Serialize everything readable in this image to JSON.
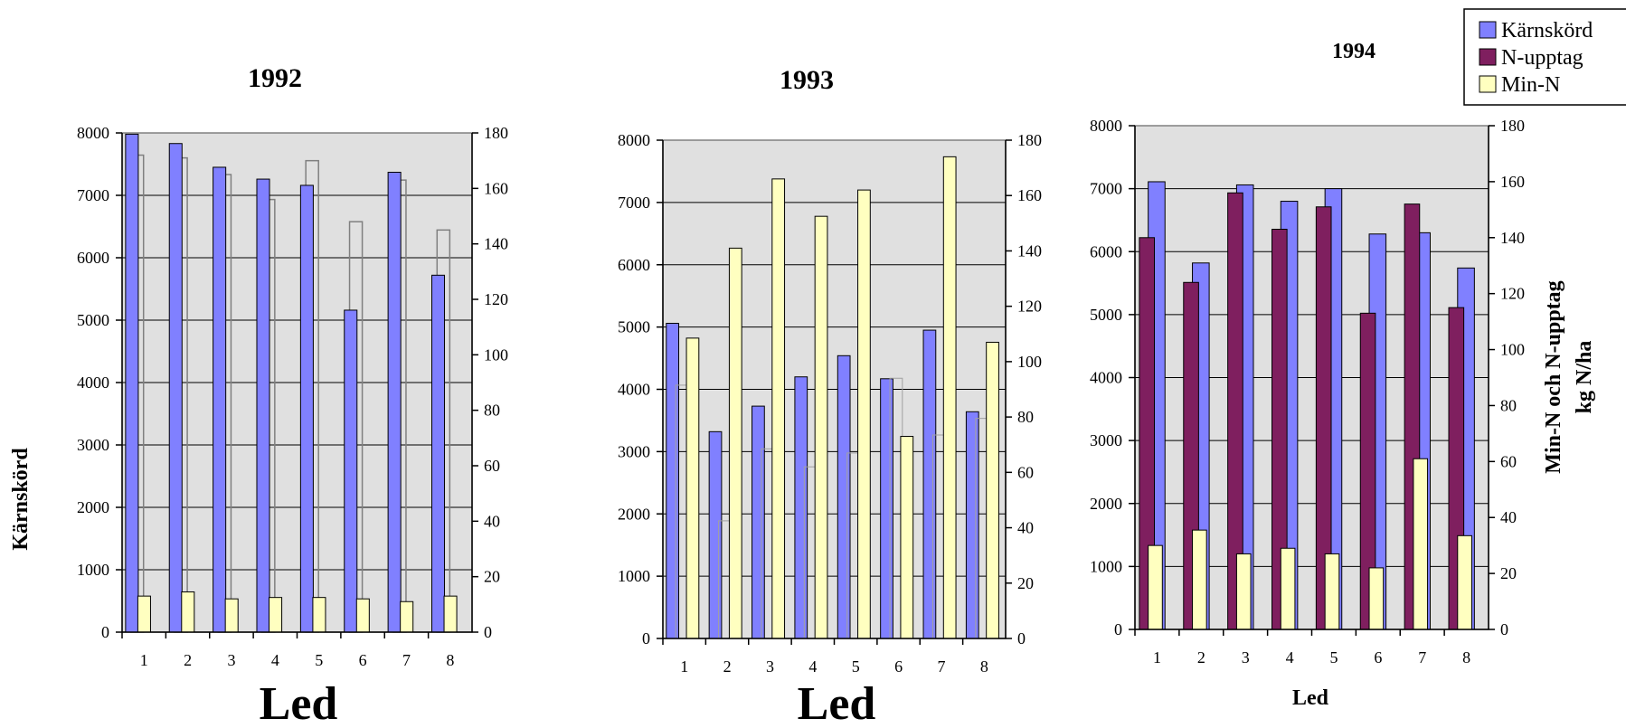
{
  "chart_data": [
    {
      "type": "bar",
      "title": "1992",
      "xlabel": "Led",
      "ylabel": "Kärnskörd",
      "ylabel_right": "",
      "categories": [
        "1",
        "2",
        "3",
        "4",
        "5",
        "6",
        "7",
        "8"
      ],
      "ylim": [
        0,
        8000
      ],
      "ylim_right": [
        0,
        180
      ],
      "yticks": [
        "0",
        "1000",
        "2000",
        "3000",
        "4000",
        "5000",
        "6000",
        "7000",
        "8000"
      ],
      "yticks_right": [
        "0",
        "20",
        "40",
        "60",
        "80",
        "100",
        "120",
        "140",
        "160",
        "180"
      ],
      "grid": true,
      "series": [
        {
          "name": "Kärnskörd",
          "axis": "left",
          "values": [
            7980,
            7830,
            7450,
            7260,
            7160,
            5160,
            7370,
            5720
          ]
        },
        {
          "name": "N-upptag",
          "axis": "right",
          "values": [
            172,
            171,
            165,
            156,
            170,
            148,
            163,
            145
          ]
        },
        {
          "name": "Min-N",
          "axis": "right",
          "values": [
            13,
            14.5,
            12,
            12.5,
            12.5,
            12,
            11,
            13
          ]
        }
      ]
    },
    {
      "type": "bar",
      "title": "1993",
      "xlabel": "Led",
      "ylabel": "",
      "ylabel_right": "",
      "categories": [
        "1",
        "2",
        "3",
        "4",
        "5",
        "6",
        "7",
        "8"
      ],
      "ylim": [
        0,
        8000
      ],
      "ylim_right": [
        0,
        180
      ],
      "yticks": [
        "0",
        "1000",
        "2000",
        "3000",
        "4000",
        "5000",
        "6000",
        "7000",
        "8000"
      ],
      "yticks_right": [
        "0",
        "20",
        "40",
        "60",
        "80",
        "100",
        "120",
        "140",
        "160",
        "180"
      ],
      "grid": true,
      "series": [
        {
          "name": "Kärnskörd",
          "axis": "left",
          "values": [
            5060,
            3320,
            3730,
            4200,
            4540,
            4170,
            4950,
            3640
          ]
        },
        {
          "name": "N-upptag",
          "axis": "right",
          "values": [
            91.5,
            42.5,
            68.5,
            62,
            67,
            94,
            73.5,
            79.5
          ]
        },
        {
          "name": "Min-N",
          "axis": "right",
          "values": [
            108.5,
            141,
            166,
            152.5,
            162,
            73,
            174,
            107
          ]
        }
      ]
    },
    {
      "type": "bar",
      "title": "1994",
      "xlabel": "Led",
      "ylabel": "",
      "ylabel_right": "Min-N och N-upptag kg N/ha",
      "ylabel_right_lines": [
        "Min-N och N-upptag",
        "kg N/ha"
      ],
      "categories": [
        "1",
        "2",
        "3",
        "4",
        "5",
        "6",
        "7",
        "8"
      ],
      "ylim": [
        0,
        8000
      ],
      "ylim_right": [
        0,
        180
      ],
      "yticks": [
        "0",
        "1000",
        "2000",
        "3000",
        "4000",
        "5000",
        "6000",
        "7000",
        "8000"
      ],
      "yticks_right": [
        "0",
        "20",
        "40",
        "60",
        "80",
        "100",
        "120",
        "140",
        "160",
        "180"
      ],
      "grid": true,
      "series": [
        {
          "name": "Kärnskörd",
          "axis": "left",
          "values": [
            7110,
            5820,
            7060,
            6800,
            7000,
            6280,
            6300,
            5740
          ]
        },
        {
          "name": "N-upptag",
          "axis": "right",
          "values": [
            140,
            124,
            156,
            143,
            151,
            113,
            152,
            115
          ]
        },
        {
          "name": "Min-N",
          "axis": "right",
          "values": [
            30,
            35.5,
            27,
            29,
            27,
            22,
            61,
            33.5
          ]
        }
      ]
    }
  ],
  "legend": {
    "placement": "top-right",
    "items": [
      {
        "label": "Kärnskörd",
        "color": "#8080ff"
      },
      {
        "label": "N-upptag",
        "color": "#7f1f5f"
      },
      {
        "label": "Min-N",
        "color": "#ffffc0"
      }
    ]
  },
  "colors": {
    "karnskord": "#8080ff",
    "n_upptag": "#7f1f5f",
    "min_n": "#ffffc0",
    "plot_background": "#e0e0e0"
  }
}
